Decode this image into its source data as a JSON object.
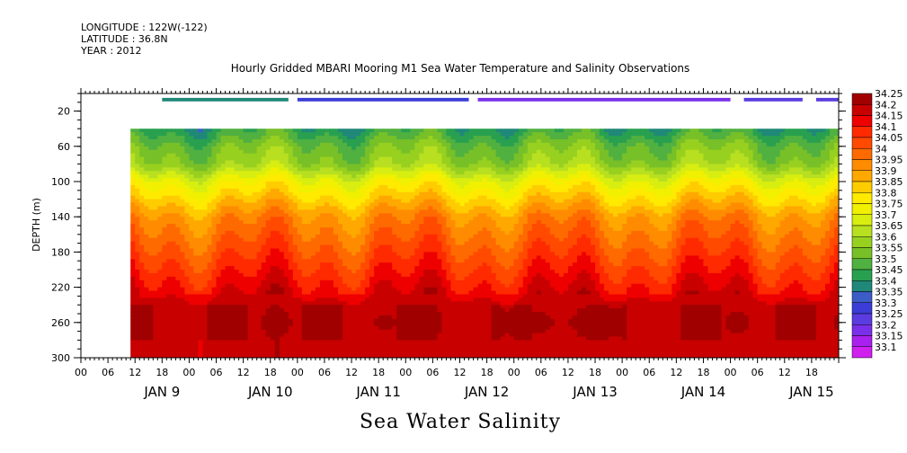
{
  "header": {
    "longitude": "LONGITUDE : 122W(-122)",
    "latitude": "LATITUDE : 36.8N",
    "year": "YEAR : 2012"
  },
  "chart_data": {
    "type": "heatmap",
    "title": "Hourly Gridded MBARI Mooring M1 Sea Water Temperature and Salinity Observations",
    "subtitle": "Sea Water Salinity",
    "ylabel": "DEPTH (m)",
    "xlabel": "",
    "y_axis": {
      "inverted": true,
      "range": [
        0,
        300
      ],
      "ticks": [
        20,
        60,
        100,
        140,
        180,
        220,
        260,
        300
      ]
    },
    "x_axis": {
      "range_hours": [
        -6,
        162
      ],
      "hour_ticks": [
        "00",
        "06",
        "12",
        "18",
        "00",
        "06",
        "12",
        "18",
        "00",
        "06",
        "12",
        "18",
        "00",
        "06",
        "12",
        "18",
        "00",
        "06",
        "12",
        "18",
        "00",
        "06",
        "12",
        "18",
        "00",
        "06",
        "12",
        "18"
      ],
      "day_labels": [
        "JAN  9",
        "JAN 10",
        "JAN 11",
        "JAN 12",
        "JAN 13",
        "JAN 14",
        "JAN 15"
      ]
    },
    "data_extent": {
      "start_hour": 5,
      "end_hour": 162,
      "top_depth_m": 40,
      "bottom_depth_m": 300
    },
    "surface_segments": [
      {
        "start_hour": 12,
        "end_hour": 40,
        "salinity": 33.4
      },
      {
        "start_hour": 42,
        "end_hour": 80,
        "salinity": 33.3
      },
      {
        "start_hour": 82,
        "end_hour": 138,
        "salinity": 33.2
      },
      {
        "start_hour": 141,
        "end_hour": 154,
        "salinity": 33.25
      },
      {
        "start_hour": 157,
        "end_hour": 162,
        "salinity": 33.25
      }
    ],
    "depth_profile_typical": [
      {
        "depth_m": 40,
        "salinity": 33.45
      },
      {
        "depth_m": 60,
        "salinity": 33.55
      },
      {
        "depth_m": 80,
        "salinity": 33.6
      },
      {
        "depth_m": 100,
        "salinity": 33.75
      },
      {
        "depth_m": 120,
        "salinity": 33.85
      },
      {
        "depth_m": 140,
        "salinity": 33.95
      },
      {
        "depth_m": 160,
        "salinity": 34.0
      },
      {
        "depth_m": 180,
        "salinity": 34.05
      },
      {
        "depth_m": 200,
        "salinity": 34.1
      },
      {
        "depth_m": 220,
        "salinity": 34.15
      },
      {
        "depth_m": 240,
        "salinity": 34.2
      },
      {
        "depth_m": 260,
        "salinity": 34.22
      },
      {
        "depth_m": 280,
        "salinity": 34.2
      },
      {
        "depth_m": 300,
        "salinity": 34.2
      }
    ],
    "colorbar": {
      "labels": [
        "34.25",
        "34.2",
        "34.15",
        "34.1",
        "34.05",
        "34",
        "33.95",
        "33.9",
        "33.85",
        "33.8",
        "33.75",
        "33.7",
        "33.65",
        "33.6",
        "33.55",
        "33.5",
        "33.45",
        "33.4",
        "33.35",
        "33.3",
        "33.25",
        "33.2",
        "33.15",
        "33.1"
      ],
      "colors": [
        "#a00000",
        "#c80000",
        "#ee0000",
        "#ff2a00",
        "#ff4a00",
        "#ff6a00",
        "#ff8c00",
        "#ffa800",
        "#ffcc00",
        "#ffea00",
        "#f0f000",
        "#d8ee10",
        "#b8e020",
        "#98d020",
        "#78c028",
        "#50b040",
        "#28a050",
        "#208878",
        "#3c5cc8",
        "#3c3cd8",
        "#5a3ce0",
        "#7a30e8",
        "#aa20ee",
        "#d020f0"
      ]
    }
  }
}
